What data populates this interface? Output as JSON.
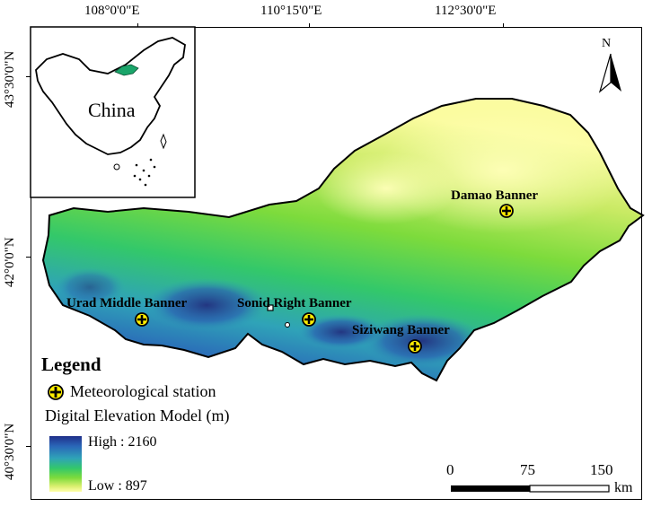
{
  "ticks": {
    "top": [
      "108°0'0\"E",
      "110°15'0\"E",
      "112°30'0\"E"
    ],
    "left": [
      "43°30'0\"N",
      "42°0'0\"N",
      "40°30'0\"N"
    ]
  },
  "inset": {
    "label": "China"
  },
  "north_arrow": {
    "label": "N"
  },
  "stations": [
    {
      "name": "Damao Banner"
    },
    {
      "name": "Urad Middle Banner"
    },
    {
      "name": "Sonid Right Banner"
    },
    {
      "name": "Siziwang Banner"
    }
  ],
  "legend": {
    "title": "Legend",
    "station_label": "Meteorological station",
    "dem_title": "Digital Elevation Model (m)",
    "high": "High : 2160",
    "low": "Low : 897"
  },
  "scale_bar": {
    "labels": [
      "0",
      "75",
      "150"
    ],
    "unit": "km"
  },
  "colors": {
    "dem_low": "#ffffa8",
    "dem_mid": "#33c86a",
    "dem_high": "#1f2f8a",
    "station_fill": "#ffee00",
    "study_area_in_inset": "#1aa56a"
  }
}
